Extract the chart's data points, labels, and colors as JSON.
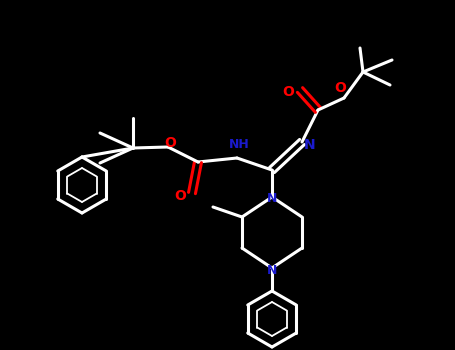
{
  "bg_color": "#000000",
  "line_color": "#ffffff",
  "n_color": "#1a1acd",
  "o_color": "#ff0000",
  "bw": 2.2,
  "figsize": [
    4.55,
    3.5
  ],
  "dpi": 100,
  "xlim": [
    0,
    455
  ],
  "ylim": [
    0,
    350
  ]
}
